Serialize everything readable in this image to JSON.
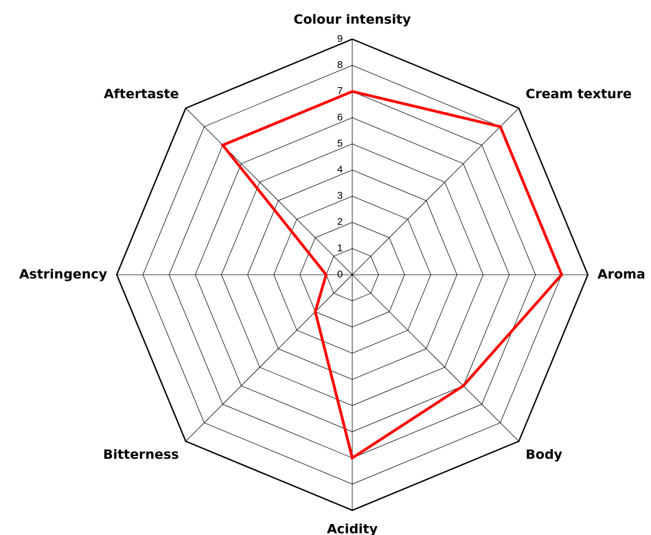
{
  "chart_data": {
    "type": "radar",
    "categories": [
      "Colour intensity",
      "Cream texture",
      "Aroma",
      "Body",
      "Acidity",
      "Bitterness",
      "Astringency",
      "Aftertaste"
    ],
    "series": [
      {
        "color": "#ff0000",
        "values": [
          7,
          8,
          8,
          6,
          7,
          2,
          1,
          7
        ]
      }
    ],
    "ylim": [
      0,
      9
    ],
    "yticks": [
      0,
      1,
      2,
      3,
      4,
      5,
      6,
      7,
      8,
      9
    ],
    "grid": true
  }
}
